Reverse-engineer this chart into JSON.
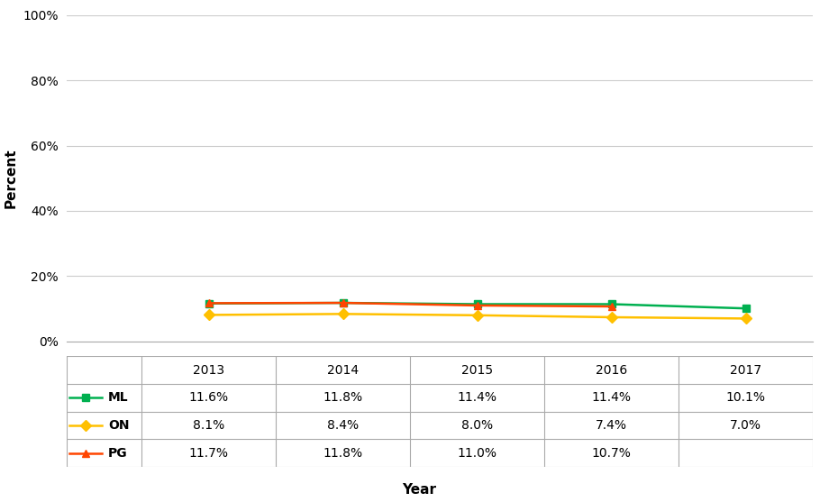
{
  "xlabel": "Year",
  "ylabel": "Percent",
  "years": [
    2013,
    2014,
    2015,
    2016,
    2017
  ],
  "series": [
    {
      "label": "ML",
      "color": "#00B050",
      "marker": "s",
      "values": [
        11.6,
        11.8,
        11.4,
        11.4,
        10.1
      ],
      "display": [
        "11.6%",
        "11.8%",
        "11.4%",
        "11.4%",
        "10.1%"
      ]
    },
    {
      "label": "ON",
      "color": "#FFC000",
      "marker": "D",
      "values": [
        8.1,
        8.4,
        8.0,
        7.4,
        7.0
      ],
      "display": [
        "8.1%",
        "8.4%",
        "8.0%",
        "7.4%",
        "7.0%"
      ]
    },
    {
      "label": "PG",
      "color": "#FF4500",
      "marker": "^",
      "values": [
        11.7,
        11.8,
        11.0,
        10.7,
        null
      ],
      "display": [
        "11.7%",
        "11.8%",
        "11.0%",
        "10.7%",
        ""
      ]
    }
  ],
  "ylim": [
    0,
    100
  ],
  "yticks": [
    0,
    20,
    40,
    60,
    80,
    100
  ],
  "background_color": "#ffffff",
  "grid_color": "#cccccc",
  "figsize": [
    9.3,
    5.57
  ],
  "dpi": 100
}
